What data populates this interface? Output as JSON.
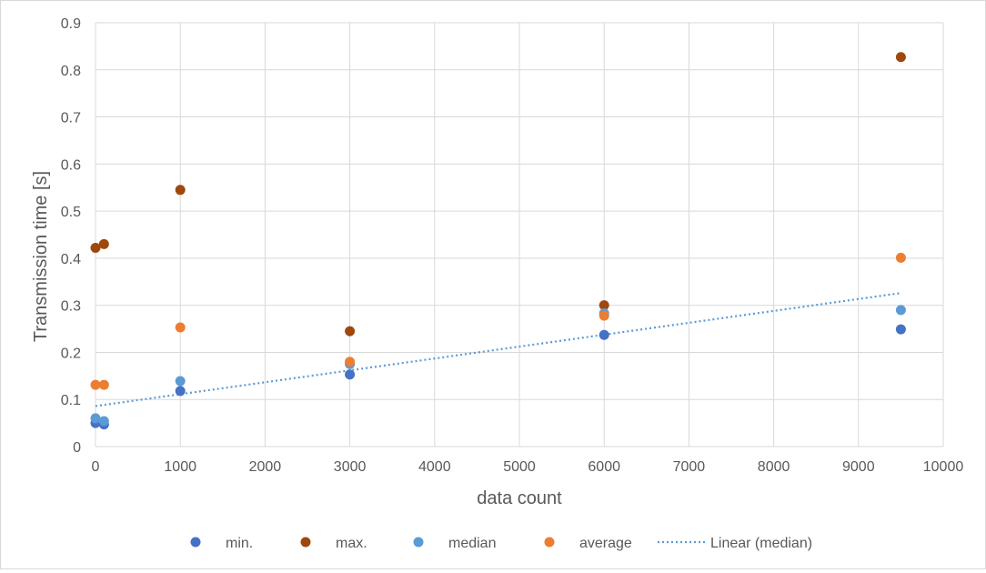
{
  "chart_data": {
    "type": "scatter",
    "xlabel": "data count",
    "ylabel": "Transmission time [s]",
    "xlim": [
      0,
      10000
    ],
    "ylim": [
      0,
      0.9
    ],
    "x_ticks": [
      0,
      1000,
      2000,
      3000,
      4000,
      5000,
      6000,
      7000,
      8000,
      9000,
      10000
    ],
    "y_ticks": [
      0,
      0.1,
      0.2,
      0.3,
      0.4,
      0.5,
      0.6,
      0.7,
      0.8,
      0.9
    ],
    "x_tick_labels": [
      "0",
      "1000",
      "2000",
      "3000",
      "4000",
      "5000",
      "6000",
      "7000",
      "8000",
      "9000",
      "10000"
    ],
    "y_tick_labels": [
      "0",
      "0.1",
      "0.2",
      "0.3",
      "0.4",
      "0.5",
      "0.6",
      "0.7",
      "0.8",
      "0.9"
    ],
    "grid": true,
    "legend_position": "bottom",
    "series": [
      {
        "name": "min.",
        "color": "#4472c4",
        "points": [
          [
            0,
            0.05
          ],
          [
            100,
            0.047
          ],
          [
            1000,
            0.118
          ],
          [
            3000,
            0.153
          ],
          [
            6000,
            0.237
          ],
          [
            9500,
            0.249
          ]
        ]
      },
      {
        "name": "max.",
        "color": "#9e480e",
        "points": [
          [
            0,
            0.422
          ],
          [
            100,
            0.43
          ],
          [
            1000,
            0.545
          ],
          [
            3000,
            0.245
          ],
          [
            6000,
            0.3
          ],
          [
            9500,
            0.827
          ]
        ]
      },
      {
        "name": "median",
        "color": "#5b9bd5",
        "points": [
          [
            0,
            0.06
          ],
          [
            100,
            0.054
          ],
          [
            1000,
            0.139
          ],
          [
            3000,
            0.175
          ],
          [
            6000,
            0.283
          ],
          [
            9500,
            0.29
          ]
        ]
      },
      {
        "name": "average",
        "color": "#ed7d31",
        "points": [
          [
            0,
            0.131
          ],
          [
            100,
            0.131
          ],
          [
            1000,
            0.253
          ],
          [
            3000,
            0.18
          ],
          [
            6000,
            0.278
          ],
          [
            9500,
            0.401
          ]
        ]
      }
    ],
    "trendline": {
      "name": "Linear (median)",
      "color": "#5b9bd5",
      "style": "dotted",
      "from": [
        0,
        0.086
      ],
      "to": [
        9500,
        0.326
      ]
    }
  }
}
